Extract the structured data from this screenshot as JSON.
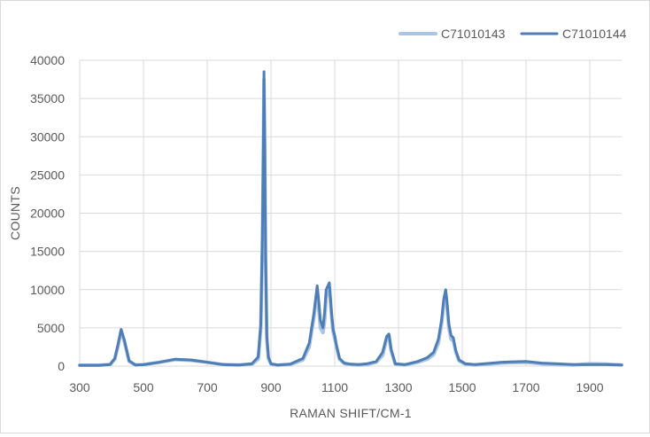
{
  "chart_data": {
    "type": "line",
    "title": "",
    "xlabel": "RAMAN SHIFT/CM-1",
    "ylabel": "COUNTS",
    "xlim": [
      300,
      2000
    ],
    "ylim": [
      0,
      40000
    ],
    "x_ticks": [
      300,
      500,
      700,
      900,
      1100,
      1300,
      1500,
      1700,
      1900
    ],
    "y_ticks": [
      0,
      5000,
      10000,
      15000,
      20000,
      25000,
      30000,
      35000,
      40000
    ],
    "grid": true,
    "legend_position": "top-right",
    "x": [
      300,
      360,
      395,
      410,
      420,
      430,
      440,
      455,
      475,
      500,
      550,
      600,
      650,
      700,
      750,
      800,
      840,
      860,
      868,
      873,
      876,
      878,
      880,
      883,
      887,
      892,
      900,
      920,
      960,
      1000,
      1020,
      1035,
      1045,
      1050,
      1055,
      1063,
      1068,
      1073,
      1083,
      1090,
      1095,
      1100,
      1105,
      1115,
      1130,
      1150,
      1175,
      1200,
      1230,
      1250,
      1263,
      1270,
      1277,
      1290,
      1320,
      1360,
      1390,
      1410,
      1425,
      1435,
      1442,
      1448,
      1452,
      1458,
      1465,
      1472,
      1480,
      1490,
      1510,
      1540,
      1580,
      1620,
      1650,
      1700,
      1750,
      1800,
      1850,
      1900,
      1950,
      2000
    ],
    "series": [
      {
        "name": "C71010143",
        "color": "#a9c4e4",
        "values": [
          120,
          120,
          200,
          900,
          2600,
          4600,
          3200,
          600,
          150,
          180,
          500,
          850,
          750,
          500,
          200,
          150,
          250,
          900,
          5000,
          16000,
          28000,
          37500,
          30000,
          14000,
          3500,
          1000,
          250,
          120,
          200,
          800,
          2500,
          6500,
          9800,
          7500,
          5000,
          4400,
          5800,
          9000,
          10300,
          6500,
          4400,
          3600,
          2600,
          900,
          350,
          200,
          150,
          200,
          500,
          1400,
          3600,
          4000,
          2000,
          250,
          150,
          500,
          900,
          1500,
          3000,
          5500,
          8200,
          9500,
          8000,
          5000,
          3500,
          3300,
          1800,
          700,
          250,
          150,
          250,
          400,
          450,
          500,
          300,
          200,
          150,
          300,
          250,
          150
        ]
      },
      {
        "name": "C71010144",
        "color": "#4e7eb5",
        "values": [
          100,
          100,
          200,
          1000,
          2800,
          4800,
          3400,
          700,
          150,
          180,
          500,
          900,
          800,
          500,
          200,
          150,
          300,
          1200,
          5500,
          17000,
          29000,
          38500,
          31000,
          15000,
          4000,
          1200,
          300,
          150,
          250,
          1000,
          3000,
          7000,
          10500,
          8500,
          6000,
          5000,
          7000,
          10000,
          10900,
          7000,
          4800,
          4000,
          2800,
          1000,
          400,
          250,
          200,
          300,
          600,
          1800,
          3900,
          4200,
          2200,
          300,
          200,
          600,
          1100,
          1800,
          3500,
          6000,
          8800,
          10000,
          8500,
          5500,
          4000,
          3700,
          2000,
          800,
          300,
          200,
          350,
          500,
          550,
          600,
          400,
          300,
          200,
          200,
          200,
          150
        ]
      }
    ]
  }
}
